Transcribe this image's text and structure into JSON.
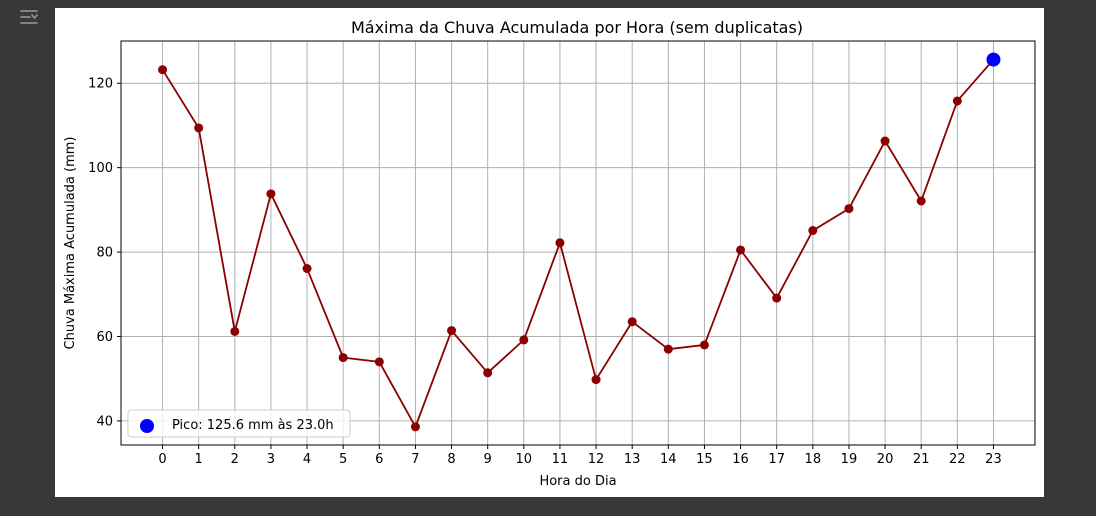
{
  "ui": {
    "output_toggle_icon": "output-collapse-icon"
  },
  "chart_data": {
    "type": "line",
    "title": "Máxima da Chuva Acumulada por Hora (sem duplicatas)",
    "xlabel": "Hora do Dia",
    "ylabel": "Chuva Máxima Acumulada (mm)",
    "x": [
      0,
      1,
      2,
      3,
      4,
      5,
      6,
      7,
      8,
      9,
      10,
      11,
      12,
      13,
      14,
      15,
      16,
      17,
      18,
      19,
      20,
      21,
      22,
      23
    ],
    "xticks": [
      "0",
      "1",
      "2",
      "3",
      "4",
      "5",
      "6",
      "7",
      "8",
      "9",
      "10",
      "11",
      "12",
      "13",
      "14",
      "15",
      "16",
      "17",
      "18",
      "19",
      "20",
      "21",
      "22",
      "23"
    ],
    "series": [
      {
        "values": [
          123.2,
          109.4,
          61.2,
          93.8,
          76.1,
          55.0,
          54.0,
          38.6,
          61.4,
          51.4,
          59.2,
          82.2,
          49.8,
          63.5,
          57.0,
          58.0,
          80.5,
          69.1,
          85.1,
          90.3,
          106.3,
          92.1,
          115.8,
          125.6
        ],
        "color": "#8b0000"
      }
    ],
    "peak": {
      "x": 23,
      "y": 125.6,
      "label": "Pico: 125.6 mm às 23.0h",
      "color": "#0000ff"
    },
    "yticks": [
      40,
      60,
      80,
      100,
      120
    ],
    "xlim": [
      -1.15,
      24.15
    ],
    "ylim": [
      34.3,
      130.0
    ],
    "grid": true,
    "legend_position": "lower-left"
  }
}
